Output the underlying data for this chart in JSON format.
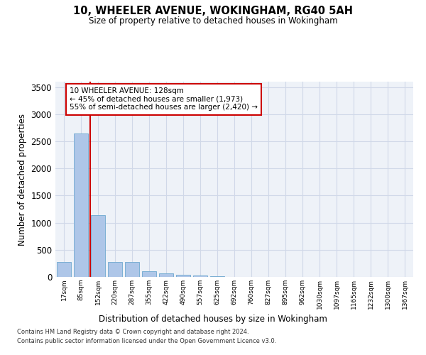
{
  "title": "10, WHEELER AVENUE, WOKINGHAM, RG40 5AH",
  "subtitle": "Size of property relative to detached houses in Wokingham",
  "xlabel": "Distribution of detached houses by size in Wokingham",
  "ylabel": "Number of detached properties",
  "footnote1": "Contains HM Land Registry data © Crown copyright and database right 2024.",
  "footnote2": "Contains public sector information licensed under the Open Government Licence v3.0.",
  "annotation_line1": "10 WHEELER AVENUE: 128sqm",
  "annotation_line2": "← 45% of detached houses are smaller (1,973)",
  "annotation_line3": "55% of semi-detached houses are larger (2,420) →",
  "bar_color": "#aec6e8",
  "bar_edge_color": "#7bafd4",
  "red_line_color": "#cc0000",
  "annotation_box_color": "#cc0000",
  "grid_color": "#d0d8e8",
  "background_color": "#eef2f8",
  "categories": [
    "17sqm",
    "85sqm",
    "152sqm",
    "220sqm",
    "287sqm",
    "355sqm",
    "422sqm",
    "490sqm",
    "557sqm",
    "625sqm",
    "692sqm",
    "760sqm",
    "827sqm",
    "895sqm",
    "962sqm",
    "1030sqm",
    "1097sqm",
    "1165sqm",
    "1232sqm",
    "1300sqm",
    "1367sqm"
  ],
  "values": [
    270,
    2640,
    1140,
    280,
    280,
    100,
    65,
    40,
    30,
    8,
    6,
    5,
    3,
    2,
    2,
    1,
    1,
    1,
    0,
    0,
    0
  ],
  "red_line_x": 1.55,
  "ylim": [
    0,
    3600
  ],
  "yticks": [
    0,
    500,
    1000,
    1500,
    2000,
    2500,
    3000,
    3500
  ]
}
